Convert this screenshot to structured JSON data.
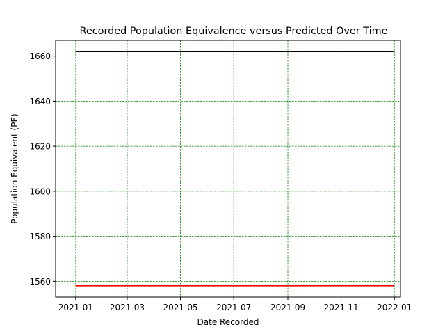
{
  "chart_data": {
    "type": "line",
    "title": "Recorded Population Equivalence versus Predicted Over Time",
    "xlabel": "Date Recorded",
    "ylabel": "Population Equivalent (PE)",
    "x_range": [
      "2020-12-09",
      "2022-01-08"
    ],
    "ylim": [
      1553,
      1667
    ],
    "x_ticks": [
      {
        "date": "2021-01-01",
        "label": "2021-01"
      },
      {
        "date": "2021-03-01",
        "label": "2021-03"
      },
      {
        "date": "2021-05-01",
        "label": "2021-05"
      },
      {
        "date": "2021-07-01",
        "label": "2021-07"
      },
      {
        "date": "2021-09-01",
        "label": "2021-09"
      },
      {
        "date": "2021-11-01",
        "label": "2021-11"
      },
      {
        "date": "2022-01-01",
        "label": "2022-01"
      }
    ],
    "y_ticks": [
      1560,
      1580,
      1600,
      1620,
      1640,
      1660
    ],
    "grid": true,
    "grid_color": "#008000",
    "series": [
      {
        "color": "#000000",
        "x": [
          "2021-01-01",
          "2021-12-31"
        ],
        "values": [
          1662,
          1662
        ]
      },
      {
        "color": "#ff0000",
        "x": [
          "2021-01-01",
          "2021-12-31"
        ],
        "values": [
          1558,
          1558
        ]
      }
    ]
  }
}
